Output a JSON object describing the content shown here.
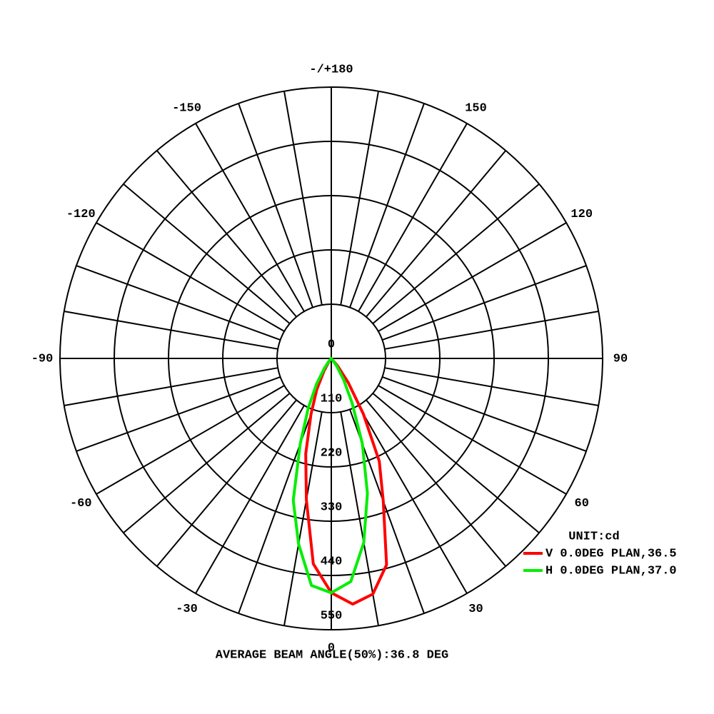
{
  "chart_data": {
    "type": "polar",
    "title": "AVERAGE BEAM ANGLE(50%):36.8 DEG",
    "unit_label": "UNIT:cd",
    "theta": [
      -40,
      -35,
      -30,
      -25,
      -20,
      -15,
      -10,
      -5,
      0,
      5,
      10,
      15,
      20,
      25,
      30,
      35,
      40
    ],
    "series": [
      {
        "name": "V 0.0DEG PLAN,36.5",
        "color": "#ff0000",
        "values": [
          5,
          10,
          30,
          70,
          120,
          200,
          291,
          418,
          475,
          500,
          485,
          433,
          308,
          230,
          130,
          60,
          20
        ]
      },
      {
        "name": "H 0.0DEG PLAN,37.0",
        "color": "#00ee00",
        "values": [
          8,
          25,
          60,
          110,
          184,
          298,
          382,
          462,
          475,
          454,
          379,
          283,
          184,
          100,
          50,
          20,
          5
        ]
      }
    ],
    "rlim": [
      0,
      550
    ],
    "rticks": [
      0,
      110,
      220,
      330,
      440,
      550
    ],
    "thetaticks": [
      {
        "value": 180,
        "label": "-/+180"
      },
      150,
      120,
      90,
      60,
      30,
      0,
      -30,
      -60,
      -90,
      -120,
      -150
    ],
    "grid": true
  }
}
